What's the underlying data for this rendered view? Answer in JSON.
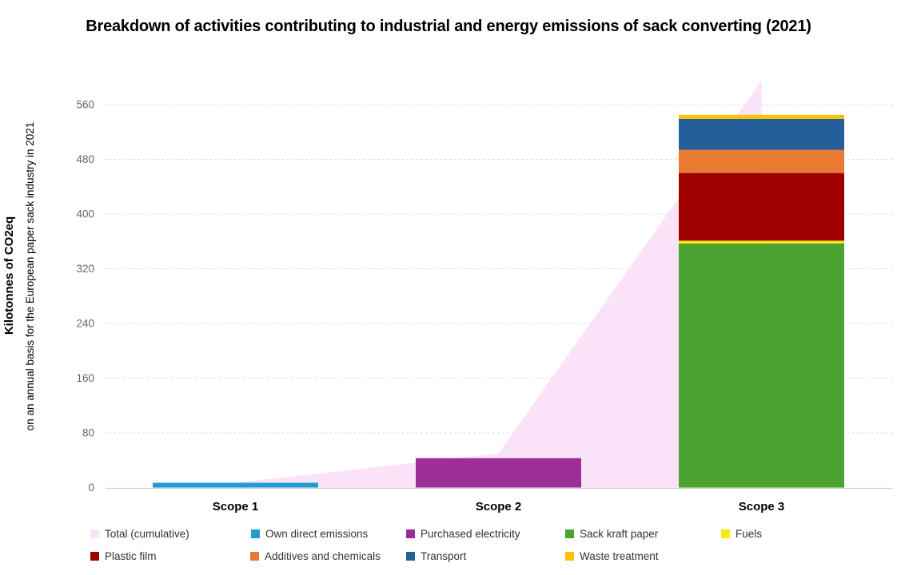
{
  "title": "Breakdown of activities contributing to industrial and energy emissions of sack converting (2021)",
  "y_axis": {
    "title_bold": "Kilotonnes of CO2eq",
    "title_sub": "on an annual basis for the European paper sack industry in 2021",
    "ticks": [
      0,
      80,
      160,
      240,
      320,
      400,
      480,
      560
    ]
  },
  "chart_data": {
    "type": "bar",
    "subtype": "stacked-bars-with-cumulative-area",
    "title": "Breakdown of activities contributing to industrial and energy emissions of sack converting (2021)",
    "xlabel": "",
    "ylabel": "Kilotonnes of CO2eq on an annual basis for the European paper sack industry in 2021",
    "ylim": [
      0,
      560
    ],
    "gridline_interval": 80,
    "grid": "horizontal-dashed",
    "legend_position": "bottom",
    "categories": [
      "Scope 1",
      "Scope 2",
      "Scope 3"
    ],
    "series": [
      {
        "name": "Own direct emissions",
        "color": "#219CD2",
        "values": [
          7,
          0,
          0
        ]
      },
      {
        "name": "Purchased electricity",
        "color": "#9C2F97",
        "values": [
          0,
          43,
          0
        ]
      },
      {
        "name": "Sack kraft paper",
        "color": "#4DA32F",
        "values": [
          0,
          0,
          357
        ]
      },
      {
        "name": "Fuels",
        "color": "#F8E711",
        "values": [
          0,
          0,
          4
        ]
      },
      {
        "name": "Plastic film",
        "color": "#9E0000",
        "values": [
          0,
          0,
          99
        ]
      },
      {
        "name": "Additives and chemicals",
        "color": "#E87A31",
        "values": [
          0,
          0,
          34
        ]
      },
      {
        "name": "Transport",
        "color": "#235F9B",
        "values": [
          0,
          0,
          45
        ]
      },
      {
        "name": "Waste treatment",
        "color": "#FFC000",
        "values": [
          0,
          0,
          6
        ]
      }
    ],
    "area_series": {
      "name": "Total (cumulative)",
      "color": "#FAE3F8",
      "values": [
        7,
        50,
        595
      ]
    }
  },
  "legend": {
    "rows": [
      {
        "items": [
          {
            "label": "Total (cumulative)",
            "color": "#FAE3F8"
          },
          {
            "label": "Own direct emissions",
            "color": "#219CD2"
          },
          {
            "label": "Purchased electricity",
            "color": "#9C2F97"
          },
          {
            "label": "Sack kraft paper",
            "color": "#4DA32F"
          },
          {
            "label": "Fuels",
            "color": "#F8E711"
          }
        ]
      },
      {
        "items": [
          {
            "label": "Plastic film",
            "color": "#9E0000"
          },
          {
            "label": "Additives and chemicals",
            "color": "#E87A31"
          },
          {
            "label": "Transport",
            "color": "#235F9B"
          },
          {
            "label": "Waste treatment",
            "color": "#FFC000"
          }
        ]
      }
    ]
  }
}
